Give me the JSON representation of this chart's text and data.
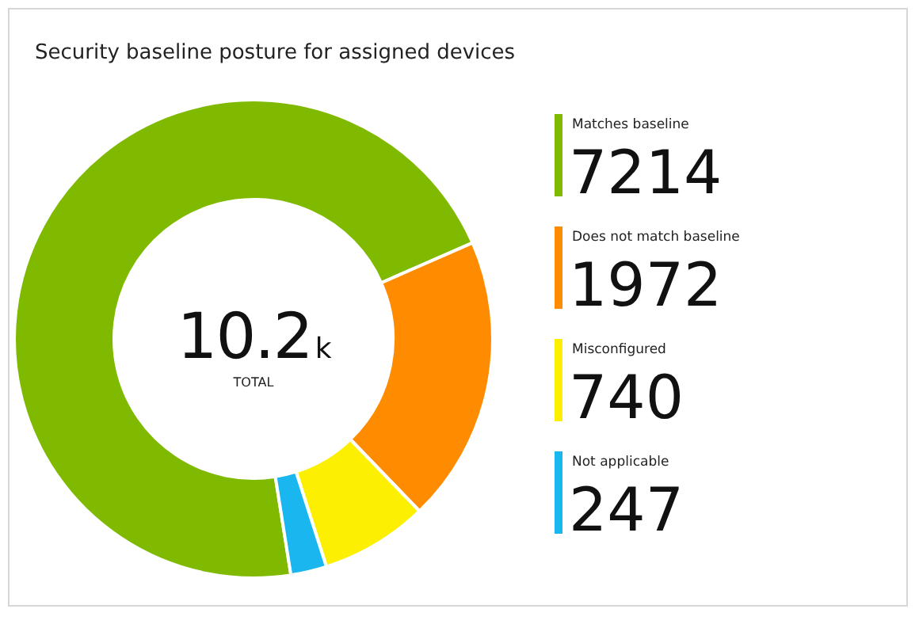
{
  "chart_data": {
    "type": "donut",
    "title": "Security baseline posture for assigned devices",
    "categories": [
      "Matches baseline",
      "Does not match baseline",
      "Misconfigured",
      "Not applicable"
    ],
    "values": [
      7214,
      1972,
      740,
      247
    ],
    "colors": [
      "#7fba00",
      "#ff8c00",
      "#fcef00",
      "#19b6f0"
    ],
    "annotations": [
      "10.2k",
      "TOTAL"
    ],
    "data_labels": true,
    "legend": "right"
  }
}
